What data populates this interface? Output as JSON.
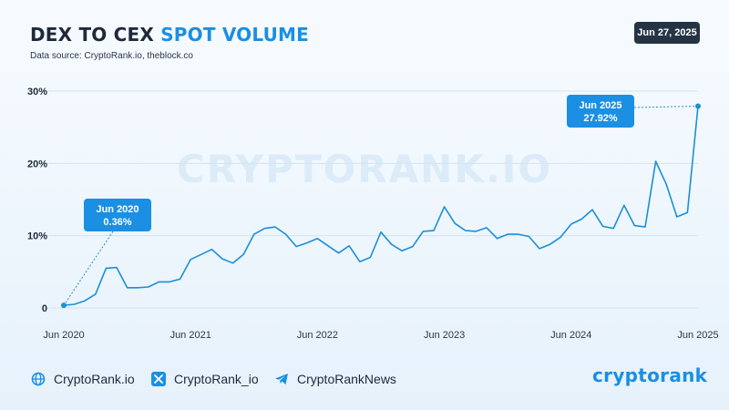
{
  "header": {
    "title_prefix": "DEX TO CEX",
    "title_accent": "SPOT VOLUME",
    "source": "Data source: CryptoRank.io, theblock.co",
    "date": "Jun 27, 2025"
  },
  "watermark": "CRYPTORANK.IO",
  "colors": {
    "accent": "#1a8fe3",
    "line": "#1c8fd6",
    "dark": "#1e2a3a",
    "badge_bg": "#253444",
    "callout_bg": "#1a8fe3"
  },
  "chart_data": {
    "type": "line",
    "title": "DEX TO CEX SPOT VOLUME",
    "xlabel": "",
    "ylabel": "",
    "ylim": [
      0,
      30
    ],
    "y_ticks": [
      0,
      10,
      20,
      30
    ],
    "y_tick_labels": [
      "0",
      "10%",
      "20%",
      "30%"
    ],
    "x_tick_labels": [
      "Jun 2020",
      "Jun 2021",
      "Jun 2022",
      "Jun 2023",
      "Jun 2024",
      "Jun 2025"
    ],
    "grid": true,
    "x": [
      "2020-06",
      "2020-07",
      "2020-08",
      "2020-09",
      "2020-10",
      "2020-11",
      "2020-12",
      "2021-01",
      "2021-02",
      "2021-03",
      "2021-04",
      "2021-05",
      "2021-06",
      "2021-07",
      "2021-08",
      "2021-09",
      "2021-10",
      "2021-11",
      "2021-12",
      "2022-01",
      "2022-02",
      "2022-03",
      "2022-04",
      "2022-05",
      "2022-06",
      "2022-07",
      "2022-08",
      "2022-09",
      "2022-10",
      "2022-11",
      "2022-12",
      "2023-01",
      "2023-02",
      "2023-03",
      "2023-04",
      "2023-05",
      "2023-06",
      "2023-07",
      "2023-08",
      "2023-09",
      "2023-10",
      "2023-11",
      "2023-12",
      "2024-01",
      "2024-02",
      "2024-03",
      "2024-04",
      "2024-05",
      "2024-06",
      "2024-07",
      "2024-08",
      "2024-09",
      "2024-10",
      "2024-11",
      "2024-12",
      "2025-01",
      "2025-02",
      "2025-03",
      "2025-04",
      "2025-05",
      "2025-06"
    ],
    "values": [
      0.36,
      0.5,
      1.0,
      1.9,
      5.5,
      5.6,
      2.8,
      2.8,
      2.9,
      3.6,
      3.6,
      4.0,
      6.7,
      7.4,
      8.1,
      6.8,
      6.2,
      7.4,
      10.2,
      11.0,
      11.2,
      10.2,
      8.5,
      9.0,
      9.6,
      8.6,
      7.6,
      8.6,
      6.4,
      7.0,
      10.5,
      8.8,
      7.9,
      8.5,
      10.6,
      10.7,
      14.0,
      11.7,
      10.7,
      10.6,
      11.1,
      9.6,
      10.2,
      10.2,
      9.9,
      8.2,
      8.8,
      9.8,
      11.6,
      12.3,
      13.6,
      11.3,
      11.0,
      14.2,
      11.4,
      11.2,
      20.3,
      17.1,
      12.6,
      13.2,
      27.92
    ],
    "annotations": [
      {
        "date": "Jun 2020",
        "value": "0.36%"
      },
      {
        "date": "Jun 2025",
        "value": "27.92%"
      }
    ]
  },
  "footer": {
    "links": [
      {
        "icon": "globe-icon",
        "label": "CryptoRank.io"
      },
      {
        "icon": "x-logo-icon",
        "label": "CryptoRank_io"
      },
      {
        "icon": "telegram-icon",
        "label": "CryptoRankNews"
      }
    ],
    "brand": "cryptorank"
  }
}
